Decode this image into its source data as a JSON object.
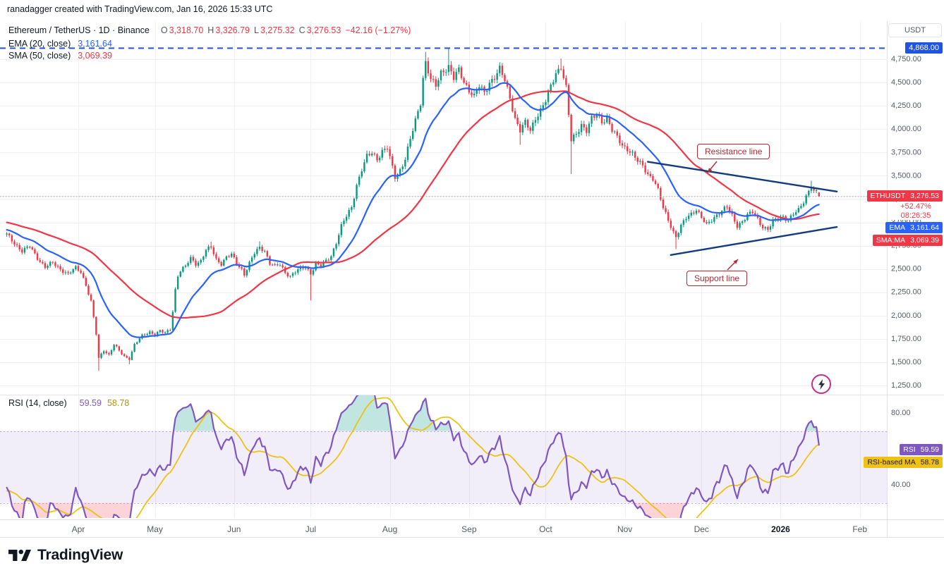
{
  "watermark": "ranadagger created with TradingView.com, Jan 16, 2026 15:33 UTC",
  "symbol_legend": {
    "title": "Ethereum / TetherUS · 1D · Binance",
    "ohlc": {
      "o_label": "O",
      "o": "3,318.70",
      "h_label": "H",
      "h": "3,326.79",
      "l_label": "L",
      "l": "3,275.32",
      "c_label": "C",
      "c": "3,276.53",
      "change": "−42.16 (−1.27%)"
    },
    "ema_label": "EMA (20, close)",
    "ema_value": "3,161.64",
    "sma_label": "SMA (50, close)",
    "sma_value": "3,069.39"
  },
  "rsi_legend": {
    "label": "RSI (14, close)",
    "value": "59.59",
    "ma_value": "58.78"
  },
  "axis": {
    "currency": "USDT",
    "price_ticks": [
      "4,750.00",
      "4,500.00",
      "4,250.00",
      "4,000.00",
      "3,750.00",
      "3,500.00",
      "3,250.00",
      "3,000.00",
      "2,750.00",
      "2,500.00",
      "2,250.00",
      "2,000.00",
      "1,750.00",
      "1,500.00",
      "1,250.00"
    ],
    "rsi_ticks": [
      "80.00",
      "40.00"
    ],
    "ath_badge": "4,868.00",
    "symbol_badge": {
      "label": "ETHUSDT",
      "value": "3,276.53",
      "change_pct": "+52.47%",
      "countdown": "08:26:35"
    },
    "ema_badge": {
      "label": "EMA",
      "value": "3,161.64"
    },
    "sma_badge": {
      "label": "SMA:MA",
      "value": "3,069.39"
    },
    "rsi_badge": {
      "label": "RSI",
      "value": "59.59"
    },
    "rsi_ma_badge": {
      "label": "RSI-based MA",
      "value": "58.78"
    }
  },
  "time_axis": {
    "labels": [
      {
        "text": "Apr",
        "day": 28
      },
      {
        "text": "May",
        "day": 58
      },
      {
        "text": "Jun",
        "day": 89
      },
      {
        "text": "Jul",
        "day": 119
      },
      {
        "text": "Aug",
        "day": 150
      },
      {
        "text": "Sep",
        "day": 181
      },
      {
        "text": "Oct",
        "day": 211
      },
      {
        "text": "Nov",
        "day": 242
      },
      {
        "text": "Dec",
        "day": 272
      },
      {
        "text": "2026",
        "day": 303,
        "bold": true
      },
      {
        "text": "Feb",
        "day": 334
      }
    ]
  },
  "annotations": {
    "resistance": "Resistance line",
    "support": "Support line"
  },
  "footer": {
    "brand": "TradingView"
  },
  "colors": {
    "up": "#089981",
    "down": "#f23645",
    "ema": "#2962ff",
    "sma": "#f23645",
    "ath": "#1e53e5",
    "trend": "#123c7c",
    "rsi": "#7e57c2",
    "rsima": "#edc213",
    "band": "rgba(126,87,194,0.10)",
    "bandline": "rgba(126,87,194,0.50)",
    "overbought": "rgba(8,153,129,0.25)",
    "oversold": "rgba(242,54,69,0.22)",
    "grid": "#eef0f4",
    "sep": "#e0e3eb",
    "dotted": "#9598a1",
    "callout": "#b22833",
    "text": "#131722",
    "axistext": "#555a64"
  },
  "chart_data": {
    "type": "candlestick",
    "symbol": "ETHUSDT",
    "exchange": "Binance",
    "interval": "1D",
    "title": "Ethereum / TetherUS",
    "last_candle": {
      "open": 3318.7,
      "high": 3326.79,
      "low": 3275.32,
      "close": 3276.53,
      "change": -42.16,
      "change_pct": -1.27
    },
    "indicators": {
      "ema": {
        "length": 20,
        "source": "close",
        "value": 3161.64
      },
      "sma": {
        "length": 50,
        "source": "close",
        "value": 3069.39
      },
      "rsi": {
        "length": 14,
        "source": "close",
        "value": 59.59,
        "ma_value": 58.78
      }
    },
    "ath_level": 4868.0,
    "price_axis": {
      "min": 1250,
      "max": 4750,
      "step": 250
    },
    "rsi_axis": {
      "band": [
        30,
        70
      ],
      "ticks": [
        80,
        40
      ]
    },
    "visible_range": {
      "start": "Mar 4",
      "end": "Feb",
      "day0_date": "Mar 4",
      "last_day": 318
    },
    "anchors": [
      [
        -70,
        3280
      ],
      [
        -55,
        3180
      ],
      [
        -40,
        3080
      ],
      [
        -25,
        3000
      ],
      [
        -12,
        2930
      ],
      [
        0,
        2870
      ],
      [
        3,
        2780
      ],
      [
        6,
        2690
      ],
      [
        9,
        2740
      ],
      [
        12,
        2620
      ],
      [
        15,
        2520
      ],
      [
        18,
        2565
      ],
      [
        21,
        2500
      ],
      [
        24,
        2445
      ],
      [
        27,
        2510
      ],
      [
        29,
        2470
      ],
      [
        31,
        2330
      ],
      [
        33,
        2150
      ],
      [
        35,
        1800
      ],
      [
        36,
        1540
      ],
      [
        38,
        1630
      ],
      [
        40,
        1580
      ],
      [
        42,
        1690
      ],
      [
        44,
        1620
      ],
      [
        46,
        1560
      ],
      [
        48,
        1540
      ],
      [
        50,
        1690
      ],
      [
        53,
        1780
      ],
      [
        56,
        1825
      ],
      [
        58,
        1800
      ],
      [
        60,
        1835
      ],
      [
        62,
        1810
      ],
      [
        64,
        1855
      ],
      [
        65,
        2050
      ],
      [
        66,
        2280
      ],
      [
        67,
        2430
      ],
      [
        68,
        2480
      ],
      [
        70,
        2525
      ],
      [
        72,
        2615
      ],
      [
        74,
        2560
      ],
      [
        76,
        2590
      ],
      [
        78,
        2700
      ],
      [
        80,
        2730
      ],
      [
        82,
        2605
      ],
      [
        84,
        2560
      ],
      [
        86,
        2625
      ],
      [
        88,
        2650
      ],
      [
        90,
        2560
      ],
      [
        92,
        2500
      ],
      [
        93,
        2445
      ],
      [
        95,
        2560
      ],
      [
        97,
        2665
      ],
      [
        99,
        2730
      ],
      [
        101,
        2700
      ],
      [
        103,
        2560
      ],
      [
        105,
        2525
      ],
      [
        107,
        2545
      ],
      [
        109,
        2465
      ],
      [
        111,
        2425
      ],
      [
        113,
        2470
      ],
      [
        115,
        2500
      ],
      [
        117,
        2525
      ],
      [
        119,
        2455
      ],
      [
        121,
        2555
      ],
      [
        123,
        2525
      ],
      [
        125,
        2585
      ],
      [
        127,
        2645
      ],
      [
        129,
        2785
      ],
      [
        131,
        2955
      ],
      [
        133,
        3065
      ],
      [
        135,
        3165
      ],
      [
        137,
        3405
      ],
      [
        139,
        3565
      ],
      [
        141,
        3700
      ],
      [
        143,
        3745
      ],
      [
        145,
        3685
      ],
      [
        147,
        3765
      ],
      [
        149,
        3795
      ],
      [
        150,
        3685
      ],
      [
        152,
        3485
      ],
      [
        154,
        3565
      ],
      [
        156,
        3685
      ],
      [
        158,
        3885
      ],
      [
        160,
        4085
      ],
      [
        162,
        4290
      ],
      [
        163,
        4555
      ],
      [
        164,
        4725
      ],
      [
        166,
        4530
      ],
      [
        168,
        4455
      ],
      [
        170,
        4605
      ],
      [
        173,
        4680
      ],
      [
        175,
        4545
      ],
      [
        177,
        4625
      ],
      [
        179,
        4505
      ],
      [
        181,
        4425
      ],
      [
        183,
        4355
      ],
      [
        185,
        4455
      ],
      [
        187,
        4385
      ],
      [
        189,
        4505
      ],
      [
        191,
        4565
      ],
      [
        193,
        4640
      ],
      [
        195,
        4515
      ],
      [
        197,
        4340
      ],
      [
        199,
        4120
      ],
      [
        201,
        3985
      ],
      [
        203,
        4065
      ],
      [
        205,
        3985
      ],
      [
        207,
        4125
      ],
      [
        209,
        4205
      ],
      [
        211,
        4300
      ],
      [
        213,
        4455
      ],
      [
        215,
        4605
      ],
      [
        217,
        4680
      ],
      [
        219,
        4440
      ],
      [
        220,
        4150
      ],
      [
        221,
        3870
      ],
      [
        223,
        3950
      ],
      [
        225,
        4055
      ],
      [
        227,
        3985
      ],
      [
        229,
        4105
      ],
      [
        231,
        4150
      ],
      [
        233,
        4085
      ],
      [
        235,
        4125
      ],
      [
        237,
        3985
      ],
      [
        239,
        3905
      ],
      [
        241,
        3825
      ],
      [
        243,
        3795
      ],
      [
        245,
        3735
      ],
      [
        247,
        3650
      ],
      [
        249,
        3605
      ],
      [
        251,
        3520
      ],
      [
        253,
        3475
      ],
      [
        255,
        3340
      ],
      [
        257,
        3150
      ],
      [
        259,
        3030
      ],
      [
        261,
        2900
      ],
      [
        262,
        2845
      ],
      [
        264,
        2955
      ],
      [
        266,
        3045
      ],
      [
        268,
        3095
      ],
      [
        270,
        3145
      ],
      [
        272,
        3050
      ],
      [
        274,
        2965
      ],
      [
        276,
        3025
      ],
      [
        278,
        3085
      ],
      [
        280,
        3125
      ],
      [
        282,
        3165
      ],
      [
        284,
        3065
      ],
      [
        286,
        2965
      ],
      [
        288,
        3015
      ],
      [
        290,
        3075
      ],
      [
        292,
        3105
      ],
      [
        294,
        3035
      ],
      [
        296,
        2955
      ],
      [
        298,
        2925
      ],
      [
        300,
        3005
      ],
      [
        302,
        3045
      ],
      [
        304,
        3065
      ],
      [
        306,
        3025
      ],
      [
        308,
        3085
      ],
      [
        310,
        3125
      ],
      [
        312,
        3225
      ],
      [
        314,
        3345
      ],
      [
        315,
        3390
      ],
      [
        316,
        3330
      ],
      [
        317,
        3319
      ],
      [
        318,
        3276.53
      ]
    ],
    "overrides": [
      {
        "day": 36,
        "low": 1408
      },
      {
        "day": 48,
        "low": 1478
      },
      {
        "day": 80,
        "high": 2792
      },
      {
        "day": 99,
        "high": 2796
      },
      {
        "day": 119,
        "low": 2162
      },
      {
        "day": 164,
        "high": 4829
      },
      {
        "day": 173,
        "high": 4868
      },
      {
        "day": 201,
        "low": 3832
      },
      {
        "day": 217,
        "high": 4756
      },
      {
        "day": 221,
        "low": 3518
      },
      {
        "day": 262,
        "low": 2714
      },
      {
        "day": 315,
        "high": 3446
      },
      {
        "day": 318,
        "open": 3318.7,
        "high": 3326.79,
        "low": 3275.32,
        "close": 3276.53
      }
    ],
    "trendlines": [
      {
        "name": "resistance",
        "d1": 251,
        "p1": 3650,
        "d2": 325,
        "p2": 3330
      },
      {
        "name": "support",
        "d1": 260,
        "p1": 2650,
        "d2": 325,
        "p2": 2950
      }
    ]
  }
}
